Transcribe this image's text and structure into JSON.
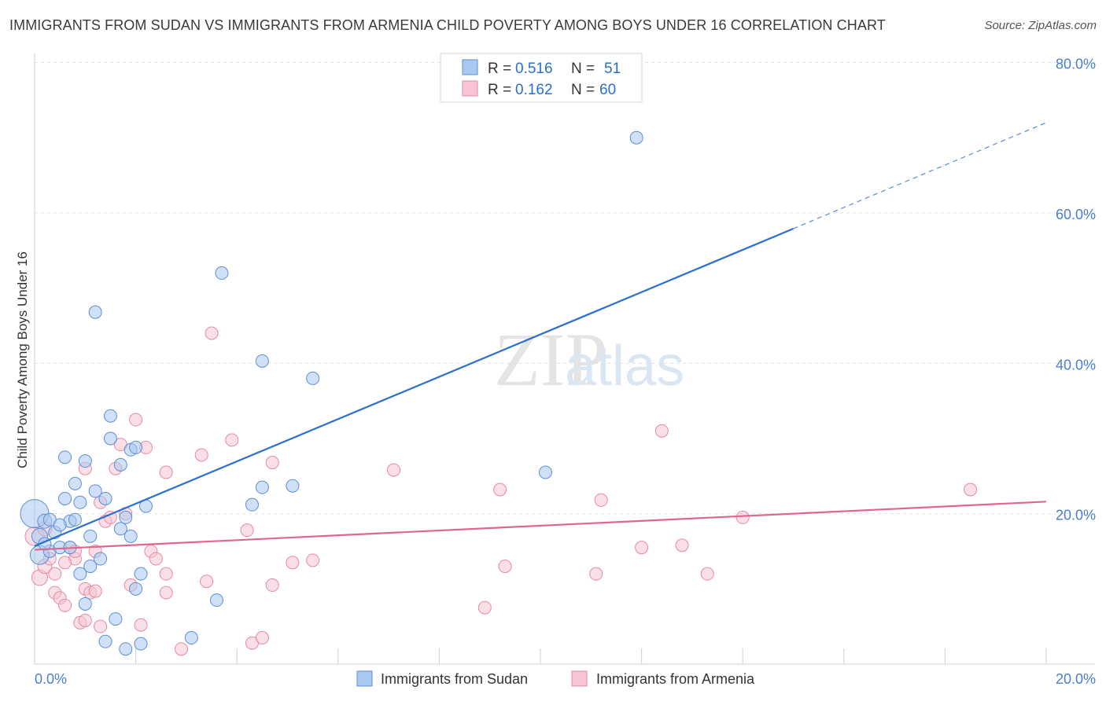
{
  "title": "IMMIGRANTS FROM SUDAN VS IMMIGRANTS FROM ARMENIA CHILD POVERTY AMONG BOYS UNDER 16 CORRELATION CHART",
  "source": "Source: ZipAtlas.com",
  "watermark": {
    "zip": "ZIP",
    "atlas": "atlas"
  },
  "colors": {
    "sudan_fill": "#a9c8f0",
    "sudan_stroke": "#5b8fd6",
    "sudan_line": "#2a6fcf",
    "armenia_fill": "#f6c4d2",
    "armenia_stroke": "#e58aa5",
    "armenia_line": "#e0668f",
    "tick_text": "#4a7fc9",
    "grid": "#dde3ea"
  },
  "legend": {
    "rows": [
      {
        "r_label": "R = ",
        "r_value": "0.516",
        "n_label": "N = ",
        "n_value": "51"
      },
      {
        "r_label": "R = ",
        "r_value": "0.162",
        "n_label": "N = ",
        "n_value": "60"
      }
    ]
  },
  "bottom_legend": [
    "Immigrants from Sudan",
    "Immigrants from Armenia"
  ],
  "chart_data": {
    "type": "scatter",
    "title": "IMMIGRANTS FROM SUDAN VS IMMIGRANTS FROM ARMENIA CHILD POVERTY AMONG BOYS UNDER 16 CORRELATION CHART",
    "xlabel": "",
    "ylabel": "Child Poverty Among Boys Under 16",
    "xlim": [
      0,
      20
    ],
    "ylim": [
      0,
      80
    ],
    "x_tick_labels": [
      {
        "value": 0,
        "label": "0.0%"
      },
      {
        "value": 20,
        "label": "20.0%"
      }
    ],
    "y_tick_labels": [
      {
        "value": 20,
        "label": "20.0%"
      },
      {
        "value": 40,
        "label": "40.0%"
      },
      {
        "value": 60,
        "label": "60.0%"
      },
      {
        "value": 80,
        "label": "80.0%"
      }
    ],
    "series": [
      {
        "name": "Immigrants from Sudan",
        "r": 0.516,
        "n": 51,
        "trend": {
          "x0": 0,
          "y0": 15.7,
          "x1": 15.0,
          "y1": 57.9,
          "x_dash_end": 20.0,
          "y_dash_end": 72.0
        },
        "points": [
          [
            0.0,
            20.0,
            18
          ],
          [
            0.1,
            14.5,
            12
          ],
          [
            0.1,
            17.0,
            10
          ],
          [
            0.2,
            19.0,
            9
          ],
          [
            0.3,
            15.0,
            8
          ],
          [
            0.3,
            19.2,
            8
          ],
          [
            0.4,
            17.5,
            8
          ],
          [
            0.5,
            15.5,
            8
          ],
          [
            0.6,
            27.5,
            8
          ],
          [
            0.6,
            22.0,
            8
          ],
          [
            0.7,
            15.5,
            8
          ],
          [
            0.7,
            19.0,
            8
          ],
          [
            0.8,
            19.2,
            8
          ],
          [
            0.8,
            24.0,
            8
          ],
          [
            0.9,
            12.0,
            8
          ],
          [
            0.9,
            21.5,
            8
          ],
          [
            1.0,
            27.0,
            8
          ],
          [
            1.0,
            8.0,
            8
          ],
          [
            1.1,
            13.0,
            8
          ],
          [
            1.1,
            17.0,
            8
          ],
          [
            1.2,
            23.0,
            8
          ],
          [
            1.2,
            46.8,
            8
          ],
          [
            1.3,
            14.0,
            8
          ],
          [
            1.4,
            3.0,
            8
          ],
          [
            1.4,
            22.0,
            8
          ],
          [
            1.5,
            30.0,
            8
          ],
          [
            1.5,
            33.0,
            8
          ],
          [
            1.6,
            6.0,
            8
          ],
          [
            1.7,
            26.5,
            8
          ],
          [
            1.7,
            18.0,
            8
          ],
          [
            1.8,
            19.5,
            8
          ],
          [
            1.8,
            2.0,
            8
          ],
          [
            1.9,
            28.5,
            8
          ],
          [
            1.9,
            17.0,
            8
          ],
          [
            2.0,
            28.8,
            8
          ],
          [
            2.0,
            10.0,
            8
          ],
          [
            2.1,
            12.0,
            8
          ],
          [
            2.1,
            2.7,
            8
          ],
          [
            2.2,
            21.0,
            8
          ],
          [
            3.1,
            3.5,
            8
          ],
          [
            3.6,
            8.5,
            8
          ],
          [
            3.7,
            52.0,
            8
          ],
          [
            4.3,
            21.2,
            8
          ],
          [
            4.5,
            23.5,
            8
          ],
          [
            4.5,
            40.3,
            8
          ],
          [
            5.1,
            23.7,
            8
          ],
          [
            5.5,
            38.0,
            8
          ],
          [
            10.1,
            25.5,
            8
          ],
          [
            11.9,
            70.0,
            8
          ],
          [
            0.2,
            16.0,
            8
          ],
          [
            0.5,
            18.5,
            8
          ]
        ]
      },
      {
        "name": "Immigrants from Armenia",
        "r": 0.162,
        "n": 60,
        "trend": {
          "x0": 0,
          "y0": 15.2,
          "x1": 20.0,
          "y1": 21.6
        },
        "points": [
          [
            0.0,
            17.0,
            12
          ],
          [
            0.1,
            11.5,
            10
          ],
          [
            0.2,
            13.0,
            9
          ],
          [
            0.2,
            18.0,
            9
          ],
          [
            0.3,
            14.0,
            8
          ],
          [
            0.4,
            12.0,
            8
          ],
          [
            0.4,
            9.5,
            8
          ],
          [
            0.5,
            8.8,
            8
          ],
          [
            0.6,
            7.8,
            8
          ],
          [
            0.7,
            15.5,
            8
          ],
          [
            0.8,
            14.0,
            8
          ],
          [
            0.8,
            15.0,
            8
          ],
          [
            0.9,
            5.5,
            8
          ],
          [
            1.0,
            5.8,
            8
          ],
          [
            1.0,
            26.0,
            8
          ],
          [
            1.0,
            10.0,
            8
          ],
          [
            1.1,
            9.5,
            8
          ],
          [
            1.2,
            15.0,
            8
          ],
          [
            1.2,
            9.7,
            8
          ],
          [
            1.3,
            21.5,
            8
          ],
          [
            1.3,
            5.0,
            8
          ],
          [
            1.4,
            19.0,
            8
          ],
          [
            1.5,
            19.5,
            8
          ],
          [
            1.6,
            26.0,
            8
          ],
          [
            1.7,
            29.2,
            8
          ],
          [
            1.8,
            20.0,
            8
          ],
          [
            1.9,
            10.5,
            8
          ],
          [
            2.0,
            32.5,
            8
          ],
          [
            2.1,
            5.2,
            8
          ],
          [
            2.2,
            28.8,
            8
          ],
          [
            2.3,
            15.0,
            8
          ],
          [
            2.4,
            14.0,
            8
          ],
          [
            2.6,
            12.0,
            8
          ],
          [
            2.6,
            9.5,
            8
          ],
          [
            2.6,
            25.5,
            8
          ],
          [
            2.9,
            2.0,
            8
          ],
          [
            3.3,
            27.8,
            8
          ],
          [
            3.4,
            11.0,
            8
          ],
          [
            3.5,
            44.0,
            8
          ],
          [
            3.9,
            29.8,
            8
          ],
          [
            4.2,
            17.8,
            8
          ],
          [
            4.3,
            2.8,
            8
          ],
          [
            4.5,
            3.5,
            8
          ],
          [
            4.7,
            26.8,
            8
          ],
          [
            4.7,
            10.5,
            8
          ],
          [
            5.1,
            13.5,
            8
          ],
          [
            5.5,
            13.8,
            8
          ],
          [
            7.1,
            25.8,
            8
          ],
          [
            8.9,
            7.5,
            8
          ],
          [
            9.2,
            23.2,
            8
          ],
          [
            9.3,
            13.0,
            8
          ],
          [
            11.1,
            12.0,
            8
          ],
          [
            11.2,
            21.8,
            8
          ],
          [
            12.0,
            15.5,
            8
          ],
          [
            12.4,
            31.0,
            8
          ],
          [
            12.8,
            15.8,
            8
          ],
          [
            13.3,
            12.0,
            8
          ],
          [
            14.0,
            19.5,
            8
          ],
          [
            18.5,
            23.2,
            8
          ],
          [
            0.6,
            13.5,
            8
          ]
        ]
      }
    ]
  }
}
